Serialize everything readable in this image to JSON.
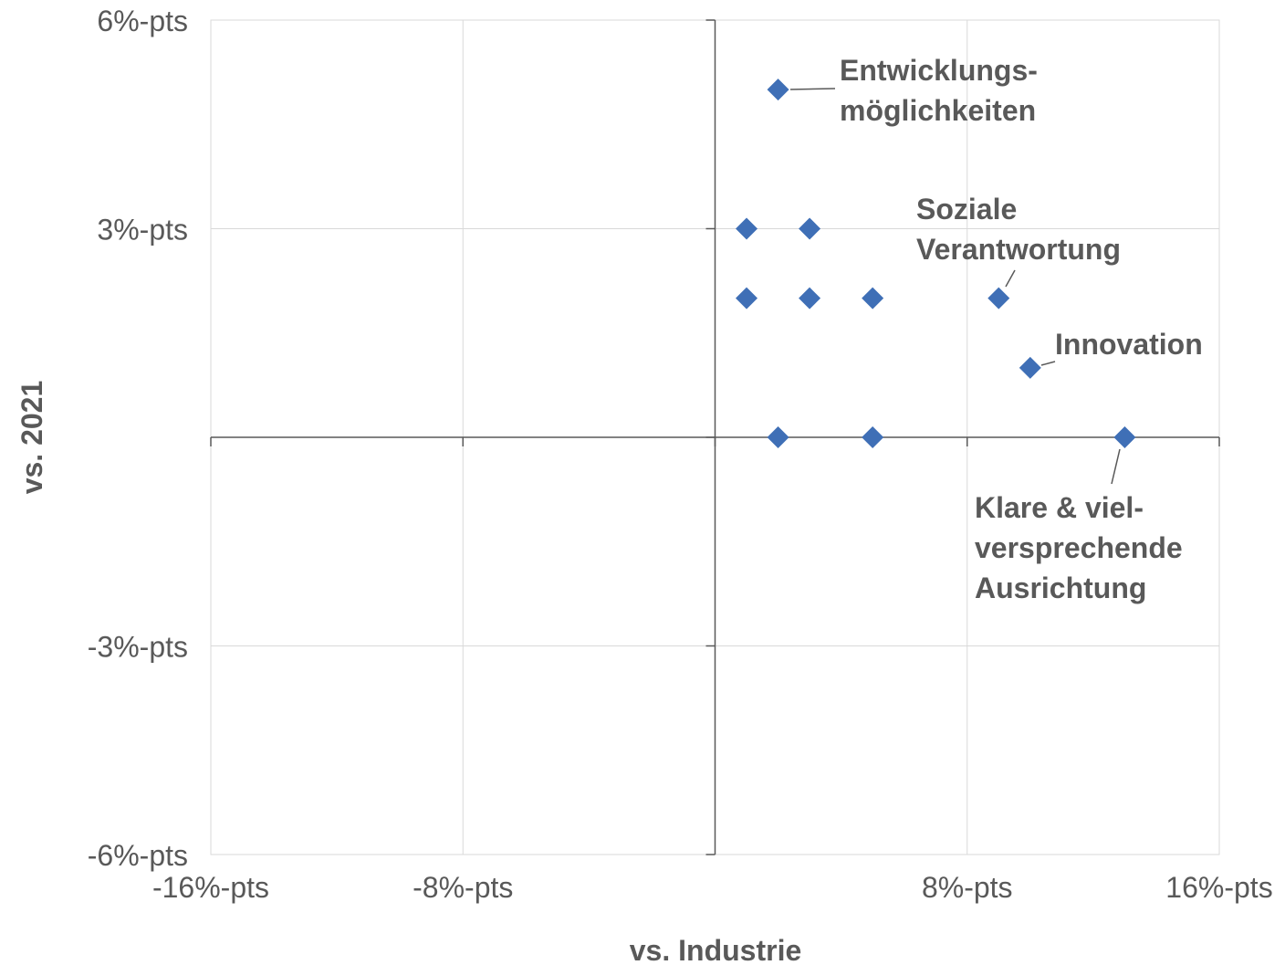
{
  "chart_data": {
    "type": "scatter",
    "xlabel": "vs. Industrie",
    "ylabel": "vs. 2021",
    "xlim": [
      -16,
      16
    ],
    "ylim": [
      -6,
      6
    ],
    "x_ticks": [
      {
        "value": -16,
        "label": "-16%-pts"
      },
      {
        "value": -8,
        "label": "-8%-pts"
      },
      {
        "value": 8,
        "label": "8%-pts"
      },
      {
        "value": 16,
        "label": "16%-pts"
      }
    ],
    "y_ticks": [
      {
        "value": 6,
        "label": "6%-pts"
      },
      {
        "value": 3,
        "label": "3%-pts"
      },
      {
        "value": -3,
        "label": "-3%-pts"
      },
      {
        "value": -6,
        "label": "-6%-pts"
      }
    ],
    "grid": true,
    "marker_color": "#3F6FB6",
    "points": [
      {
        "x": 2,
        "y": 5
      },
      {
        "x": 1,
        "y": 3
      },
      {
        "x": 3,
        "y": 3
      },
      {
        "x": 1,
        "y": 2
      },
      {
        "x": 3,
        "y": 2
      },
      {
        "x": 5,
        "y": 2
      },
      {
        "x": 9,
        "y": 2
      },
      {
        "x": 10,
        "y": 1
      },
      {
        "x": 2,
        "y": 0
      },
      {
        "x": 5,
        "y": 0
      },
      {
        "x": 13,
        "y": 0
      }
    ],
    "annotations": [
      {
        "lines": [
          "Entwicklungs-",
          "möglichkeiten"
        ],
        "point": 0
      },
      {
        "lines": [
          "Soziale",
          "Verantwortung"
        ],
        "point": 6
      },
      {
        "lines": [
          "Innovation"
        ],
        "point": 7
      },
      {
        "lines": [
          "Klare & viel-",
          "versprechende",
          "Ausrichtung"
        ],
        "point": 10
      }
    ]
  }
}
